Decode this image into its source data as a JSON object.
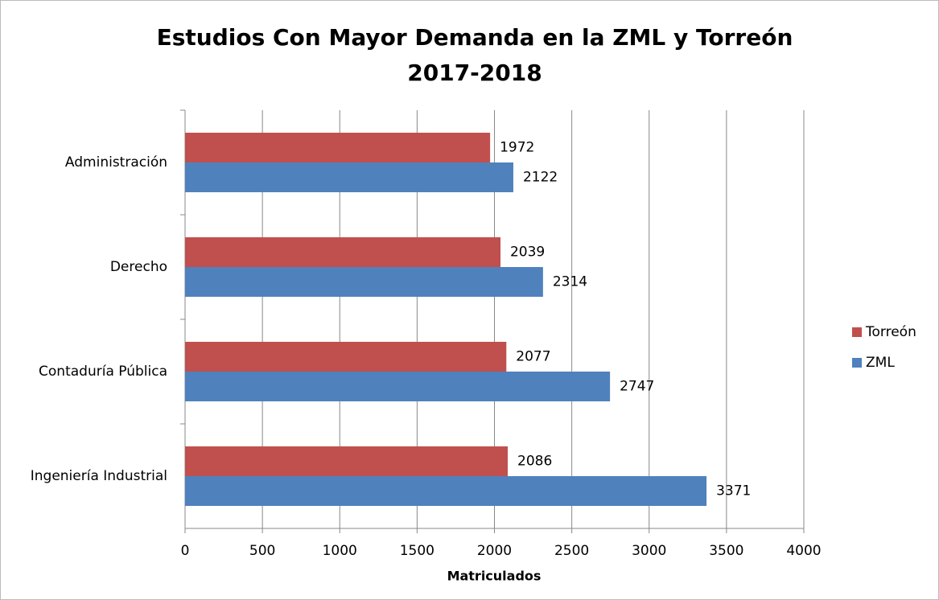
{
  "chart_data": {
    "type": "hbar",
    "title": [
      "Estudios Con Mayor Demanda en la ZML y Torreón",
      "2017-2018"
    ],
    "xlabel": "Matriculados",
    "categories": [
      "Administración",
      "Derecho",
      "Contaduría Pública",
      "Ingeniería Industrial"
    ],
    "series": [
      {
        "name": "Torreón",
        "color": "#c0504d",
        "values": [
          1972,
          2039,
          2077,
          2086
        ]
      },
      {
        "name": "ZML",
        "color": "#4f81bd",
        "values": [
          2122,
          2314,
          2747,
          3371
        ]
      }
    ],
    "xlim": [
      0,
      4000
    ],
    "xticks": [
      0,
      500,
      1000,
      1500,
      2000,
      2500,
      3000,
      3500,
      4000
    ],
    "grid": true,
    "legend": "right"
  }
}
